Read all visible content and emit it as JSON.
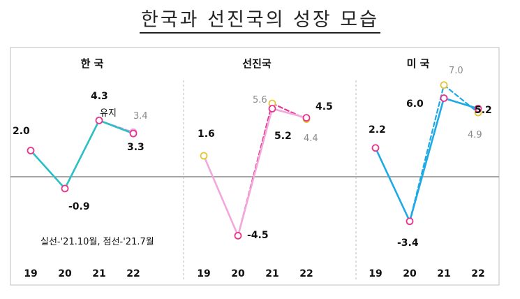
{
  "title": "한국과 선진국의 성장 모습",
  "note": "실선-'21.10월, 점선-'21.7월",
  "colors": {
    "korea_solid": "#2bbfc4",
    "korea_dash": "#e79be0",
    "adv_solid": "#f2a8dc",
    "adv_dash": "#e8348e",
    "us_solid": "#1fa9e6",
    "us_dash": "#1fa9e6",
    "marker_oct": "#e8348e",
    "marker_jul": "#e6c43a",
    "axis_line": "#888888",
    "frame": "#bfbfbf"
  },
  "chart_data": [
    {
      "type": "line",
      "title": "한 국",
      "categories": [
        "19",
        "20",
        "21",
        "22"
      ],
      "series": [
        {
          "style": "solid",
          "values": [
            2.0,
            -0.9,
            4.3,
            3.3
          ]
        },
        {
          "style": "dashed",
          "values": [
            null,
            null,
            4.3,
            3.4
          ]
        }
      ],
      "labels": {
        "v19": "2.0",
        "v20": "-0.9",
        "v21": "4.3",
        "v21_note": "유지",
        "v22": "3.3",
        "v22_jul": "3.4"
      }
    },
    {
      "type": "line",
      "title": "선진국",
      "categories": [
        "19",
        "20",
        "21",
        "22"
      ],
      "series": [
        {
          "style": "solid",
          "values": [
            1.6,
            -4.5,
            5.2,
            4.5
          ]
        },
        {
          "style": "dashed",
          "values": [
            null,
            -4.5,
            5.6,
            4.4
          ]
        }
      ],
      "labels": {
        "v19": "1.6",
        "v20": "-4.5",
        "v21": "5.2",
        "v21_jul": "5.6",
        "v22": "4.5",
        "v22_jul": "4.4"
      }
    },
    {
      "type": "line",
      "title": "미 국",
      "categories": [
        "19",
        "20",
        "21",
        "22"
      ],
      "series": [
        {
          "style": "solid",
          "values": [
            2.2,
            -3.4,
            6.0,
            5.2
          ]
        },
        {
          "style": "dashed",
          "values": [
            null,
            -3.4,
            7.0,
            4.9
          ]
        }
      ],
      "labels": {
        "v19": "2.2",
        "v20": "-3.4",
        "v21": "6.0",
        "v21_jul": "7.0",
        "v22": "5.2",
        "v22_jul": "4.9"
      }
    }
  ]
}
